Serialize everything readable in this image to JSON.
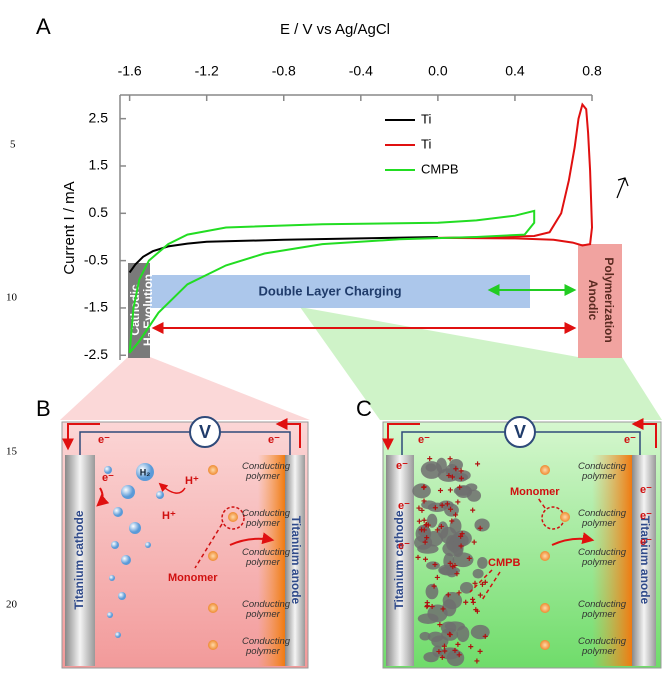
{
  "line_numbers": [
    5,
    10,
    15,
    20
  ],
  "panel_labels": [
    "A",
    "B",
    "C"
  ],
  "chart_data": {
    "type": "line",
    "x_label": "E / V vs Ag/AgCl",
    "y_label": "Current I / mA",
    "xlim": [
      -1.65,
      0.8
    ],
    "xticks": [
      -1.6,
      -1.2,
      -0.8,
      -0.4,
      {
        "value": 0,
        "label": "0.0"
      },
      0.4,
      0.8
    ],
    "ylim": [
      -2.6,
      3.0
    ],
    "yticks": [
      2.5,
      1.5,
      0.5,
      -0.5,
      -1.5,
      -2.5
    ],
    "legend": "upper right",
    "series": [
      {
        "name": "Ti",
        "color": "#000000",
        "x": [
          -1.6,
          -1.57,
          -1.53,
          -1.48,
          -1.4,
          -1.3,
          -1.2,
          -1.0,
          -0.8,
          -0.4,
          0
        ],
        "values": [
          -0.75,
          -0.58,
          -0.42,
          -0.3,
          -0.2,
          -0.14,
          -0.1,
          -0.08,
          -0.06,
          -0.03,
          0
        ]
      },
      {
        "name": "Ti",
        "color": "#e01010",
        "x": [
          0,
          0.3,
          0.5,
          0.58,
          0.64,
          0.68,
          0.71,
          0.73,
          0.75,
          0.77,
          0.78,
          0.79,
          0.8,
          0.79,
          0.75,
          0.7,
          0.6,
          0.4,
          0
        ],
        "values": [
          -0.02,
          0,
          0.02,
          0.1,
          0.5,
          1.2,
          1.9,
          2.5,
          2.8,
          2.7,
          2.2,
          1.4,
          0.2,
          -0.15,
          -0.18,
          -0.12,
          -0.06,
          -0.03,
          -0.02
        ]
      },
      {
        "name": "CMPB",
        "color": "#22dd22",
        "x": [
          -1.6,
          -1.58,
          -1.55,
          -1.5,
          -1.4,
          -1.3,
          -1.1,
          -0.6,
          0,
          0.2,
          0.4,
          0.5,
          0.5,
          0.45,
          0.2,
          -0.2,
          -0.6,
          -0.9,
          -1.1,
          -1.3,
          -1.45,
          -1.55,
          -1.6
        ],
        "values": [
          -2.45,
          -1.5,
          -0.9,
          -0.5,
          -0.15,
          0.05,
          0.2,
          0.27,
          0.3,
          0.35,
          0.45,
          0.55,
          0.3,
          0.05,
          0,
          -0.05,
          -0.15,
          -0.35,
          -0.6,
          -1.0,
          -1.6,
          -2.2,
          -2.45
        ]
      }
    ],
    "annotations": [
      "Cathodic",
      "H₂ Evolution",
      "Double Layer Charging",
      "Anodic",
      "Polymerization"
    ]
  },
  "diagram_b": {
    "voltmeter": "V",
    "electron_labels": [
      "e⁻",
      "e⁻",
      "e⁻"
    ],
    "h2": "H₂",
    "protons": [
      "H⁺",
      "H⁺"
    ],
    "monomer": "Monomer",
    "conducting_polymer_labels": [
      [
        "Conducting",
        "polymer"
      ],
      [
        "Conducting",
        "polymer"
      ],
      [
        "Conducting",
        "polymer"
      ],
      [
        "Conducting",
        "polymer"
      ],
      [
        "Conducting",
        "polymer"
      ]
    ],
    "cathode": "Titanium cathode",
    "anode": "Titanium anode"
  },
  "diagram_c": {
    "voltmeter": "V",
    "electron_labels": [
      "e⁻",
      "e⁻",
      "e⁻",
      "e⁻",
      "e⁻",
      "e⁻",
      "e⁻",
      "e⁻"
    ],
    "monomer": "Monomer",
    "cmpb": "CMPB",
    "conducting_polymer_labels": [
      [
        "Conducting",
        "polymer"
      ],
      [
        "Conducting",
        "polymer"
      ],
      [
        "Conducting",
        "polymer"
      ],
      [
        "Conducting",
        "polymer"
      ],
      [
        "Conducting",
        "polymer"
      ]
    ],
    "cathode": "Titanium cathode",
    "anode": "Titanium anode"
  }
}
